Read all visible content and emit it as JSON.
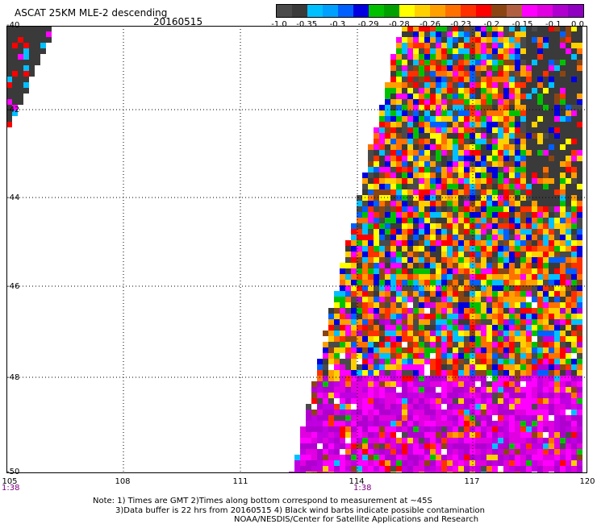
{
  "header": {
    "title": "ASCAT 25KM MLE-2 descending",
    "date": "20160515"
  },
  "colorbar": {
    "colors": [
      "#4a4a4a",
      "#3a3a3a",
      "#00c0ff",
      "#00a0ff",
      "#0060ff",
      "#0000e0",
      "#00c000",
      "#00a000",
      "#ffff00",
      "#ffd000",
      "#ffa000",
      "#ff7000",
      "#ff3000",
      "#ff0000",
      "#8b4513",
      "#b06040",
      "#ff00ff",
      "#e000e0",
      "#b000d0",
      "#9000c0"
    ],
    "ticks": [
      "-1.0",
      "-0.35",
      "-0.3",
      "-0.29",
      "-0.28",
      "-0.26",
      "-0.23",
      "-0.2",
      "-0.15",
      "-0.1",
      "0.0"
    ]
  },
  "map": {
    "lat_labels": [
      "-40",
      "-42",
      "-44",
      "-46",
      "-48",
      "-50"
    ],
    "lon_labels": [
      "105",
      "108",
      "111",
      "114",
      "117",
      "120"
    ],
    "time_labels": [
      "1:38",
      "1:38"
    ],
    "lon_range": [
      105,
      120
    ],
    "lat_range": [
      -40,
      -50
    ]
  },
  "notes": {
    "line1": "Note: 1) Times are GMT 2)Times along bottom correspond to measurement at ~45S",
    "line2": "3)Data buffer is 22 hrs from 20160515 4) Black wind barbs indicate possible contamination",
    "line3": "NOAA/NESDIS/Center for Satellite Applications and Research"
  }
}
